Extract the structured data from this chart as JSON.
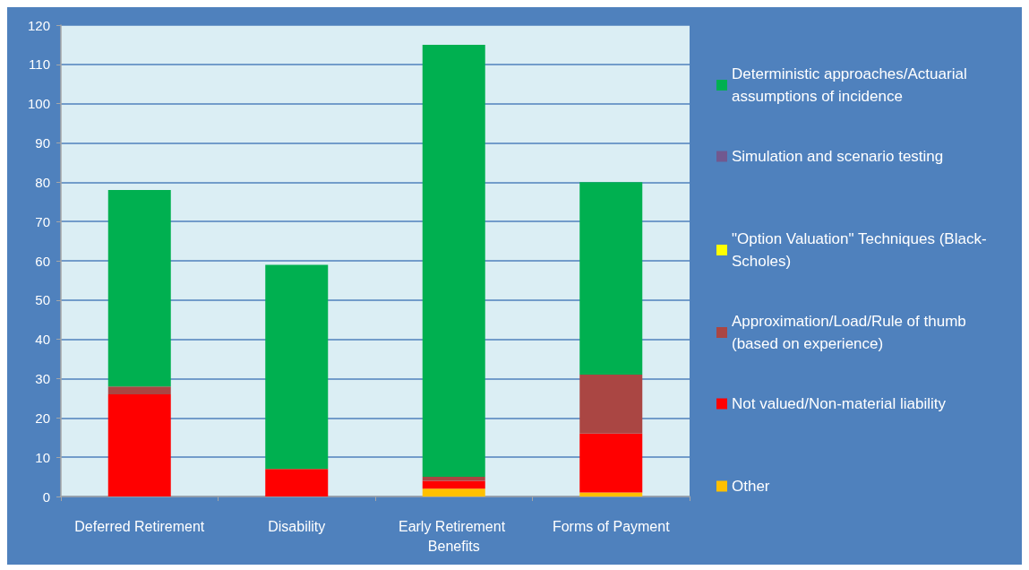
{
  "chart_data": {
    "type": "bar",
    "stacked": true,
    "categories": [
      "Deferred Retirement",
      "Disability",
      "Early Retirement Benefits",
      "Forms of Payment"
    ],
    "series": [
      {
        "name": "Other",
        "color": "#ffc000",
        "values": [
          0,
          0,
          2,
          1
        ]
      },
      {
        "name": "Not valued/Non-material liability",
        "color": "#ff0000",
        "values": [
          26,
          7,
          2,
          15
        ]
      },
      {
        "name": "Approximation/Load/Rule of thumb (based on experience)",
        "color": "#aa4643",
        "values": [
          2,
          0,
          1,
          15
        ]
      },
      {
        "name": "\"Option Valuation\" Techniques (Black-Scholes)",
        "color": "#ffff00",
        "values": [
          0,
          0,
          0,
          0
        ]
      },
      {
        "name": "Simulation and scenario testing",
        "color": "#71588f",
        "values": [
          0,
          0,
          0,
          0
        ]
      },
      {
        "name": "Deterministic approaches/Actuarial assumptions of incidence",
        "color": "#00b050",
        "values": [
          50,
          52,
          110,
          49
        ]
      }
    ],
    "ylim": [
      0,
      120
    ],
    "yticks": [
      0,
      10,
      20,
      30,
      40,
      50,
      60,
      70,
      80,
      90,
      100,
      110,
      120
    ],
    "grid": "y",
    "legend": "right"
  }
}
